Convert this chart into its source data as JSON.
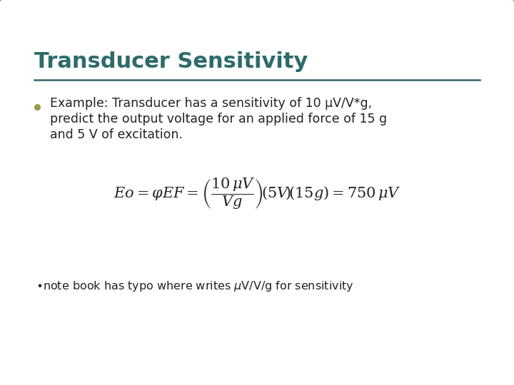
{
  "title": "Transducer Sensitivity",
  "title_color": "#2E6B6B",
  "title_fontsize": 22,
  "bullet_text_line1": "Example: Transducer has a sensitivity of 10 μV/V*g,",
  "bullet_text_line2": "predict the output voltage for an applied force of 15 g",
  "bullet_text_line3": "and 5 V of excitation.",
  "bullet_color": "#9B9B4B",
  "body_text_color": "#222222",
  "body_fontsize": 12.5,
  "equation_fontsize": 15,
  "note_fontsize": 11.5,
  "bg_color": "#ffffff",
  "border_color": "#2E6B6B",
  "separator_color": "#2E6B6B",
  "fig_bg": "#d0d0d0"
}
